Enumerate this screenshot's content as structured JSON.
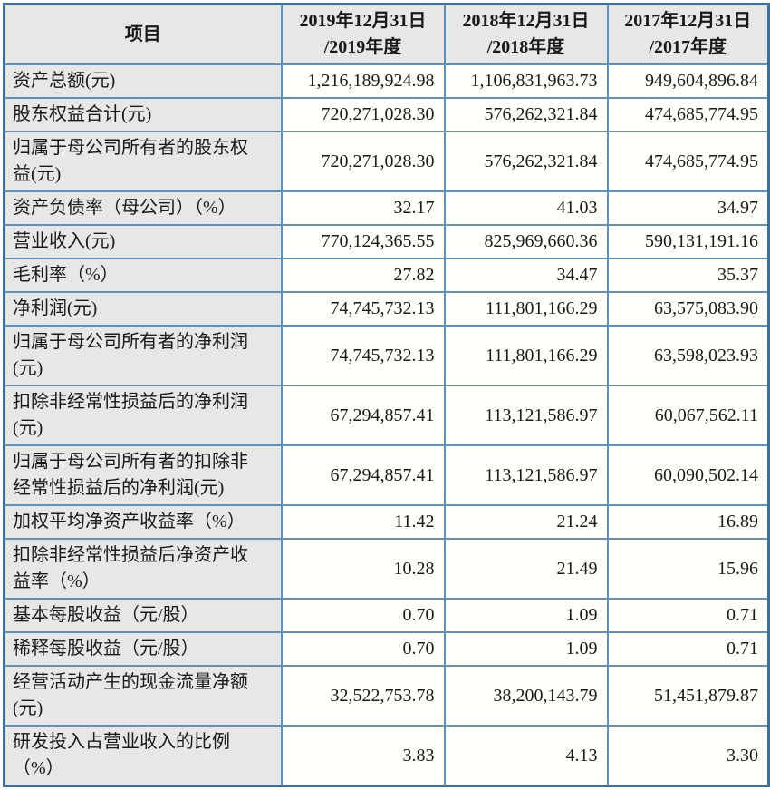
{
  "colors": {
    "border_outer": "#3f6f9f",
    "border_inner": "#6091bd",
    "header_bg": "#e7e7e7",
    "label_bg": "#e7e7e7",
    "cell_bg": "#fffffb",
    "text": "#1a1a1a"
  },
  "table": {
    "header": {
      "item_label": "项目",
      "columns": [
        {
          "line1": "2019年12月31日",
          "line2": "/2019年度"
        },
        {
          "line1": "2018年12月31日",
          "line2": "/2018年度"
        },
        {
          "line1": "2017年12月31日",
          "line2": "/2017年度"
        }
      ]
    },
    "rows": [
      {
        "label": "资产总额(元)",
        "values": [
          "1,216,189,924.98",
          "1,106,831,963.73",
          "949,604,896.84"
        ]
      },
      {
        "label": "股东权益合计(元)",
        "values": [
          "720,271,028.30",
          "576,262,321.84",
          "474,685,774.95"
        ]
      },
      {
        "label": "归属于母公司所有者的股东权益(元)",
        "values": [
          "720,271,028.30",
          "576,262,321.84",
          "474,685,774.95"
        ]
      },
      {
        "label": "资产负债率（母公司）（%）",
        "values": [
          "32.17",
          "41.03",
          "34.97"
        ]
      },
      {
        "label": "营业收入(元)",
        "values": [
          "770,124,365.55",
          "825,969,660.36",
          "590,131,191.16"
        ]
      },
      {
        "label": "毛利率（%）",
        "values": [
          "27.82",
          "34.47",
          "35.37"
        ]
      },
      {
        "label": "净利润(元)",
        "values": [
          "74,745,732.13",
          "111,801,166.29",
          "63,575,083.90"
        ]
      },
      {
        "label": "归属于母公司所有者的净利润(元)",
        "values": [
          "74,745,732.13",
          "111,801,166.29",
          "63,598,023.93"
        ]
      },
      {
        "label": "扣除非经常性损益后的净利润(元)",
        "values": [
          "67,294,857.41",
          "113,121,586.97",
          "60,067,562.11"
        ]
      },
      {
        "label": "归属于母公司所有者的扣除非经常性损益后的净利润(元)",
        "values": [
          "67,294,857.41",
          "113,121,586.97",
          "60,090,502.14"
        ]
      },
      {
        "label": "加权平均净资产收益率（%）",
        "values": [
          "11.42",
          "21.24",
          "16.89"
        ]
      },
      {
        "label": "扣除非经常性损益后净资产收益率（%）",
        "values": [
          "10.28",
          "21.49",
          "15.96"
        ]
      },
      {
        "label": "基本每股收益（元/股）",
        "values": [
          "0.70",
          "1.09",
          "0.71"
        ]
      },
      {
        "label": "稀释每股收益（元/股）",
        "values": [
          "0.70",
          "1.09",
          "0.71"
        ]
      },
      {
        "label": "经营活动产生的现金流量净额(元)",
        "values": [
          "32,522,753.78",
          "38,200,143.79",
          "51,451,879.87"
        ]
      },
      {
        "label": "研发投入占营业收入的比例（%）",
        "values": [
          "3.83",
          "4.13",
          "3.30"
        ]
      }
    ]
  }
}
